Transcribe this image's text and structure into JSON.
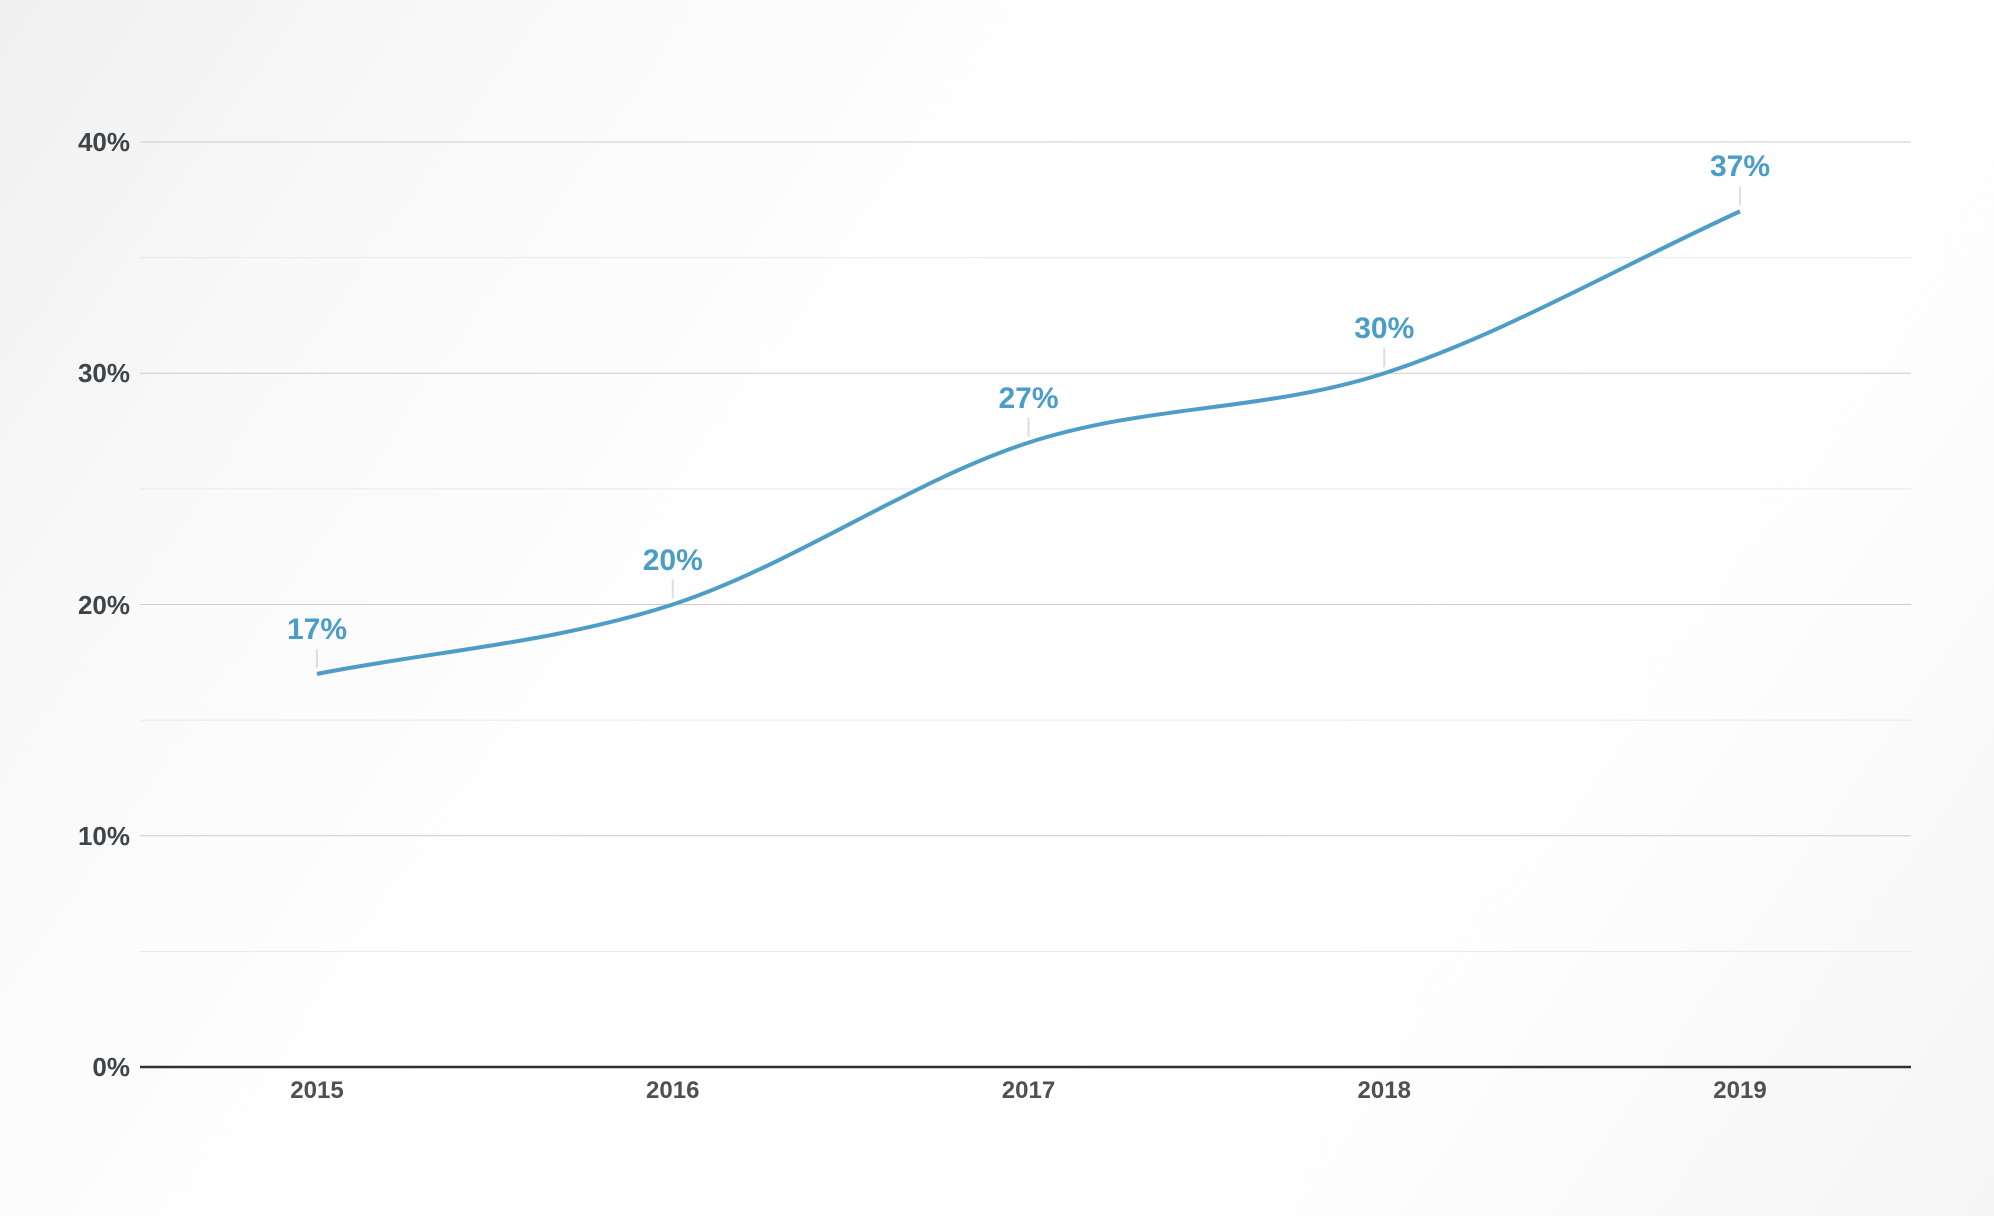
{
  "chart": {
    "line_color": "#4d9dc6",
    "data_label_color": "#4a9dc7",
    "y_axis_label_color": "#3f4449",
    "x_axis_label_color": "#4d5154",
    "major_grid_color": "#cccccc",
    "minor_grid_color": "#e9e9e9",
    "baseline_color": "#2e3234",
    "leader_line_color": "#dedede",
    "background_top_left": "#f0f0f0",
    "background_center": "#ffffff"
  },
  "chart_data": {
    "type": "line",
    "categories": [
      "2015",
      "2016",
      "2017",
      "2018",
      "2019"
    ],
    "series": [
      {
        "name": "percentage",
        "values": [
          17,
          20,
          27,
          30,
          37
        ]
      }
    ],
    "data_labels": [
      "17%",
      "20%",
      "27%",
      "30%",
      "37%"
    ],
    "title": "",
    "xlabel": "",
    "ylabel": "",
    "ylim": [
      0,
      40
    ],
    "y_tick_values": [
      0,
      10,
      20,
      30,
      40
    ],
    "y_tick_labels": [
      "0%",
      "10%",
      "20%",
      "30%",
      "40%"
    ],
    "y_major_step": 10,
    "y_minor_step": 5,
    "grid": "horizontal-major-and-minor",
    "legend": "none",
    "curve": "monotone-smooth",
    "data_labels_position": "above-points-with-leader-line"
  }
}
